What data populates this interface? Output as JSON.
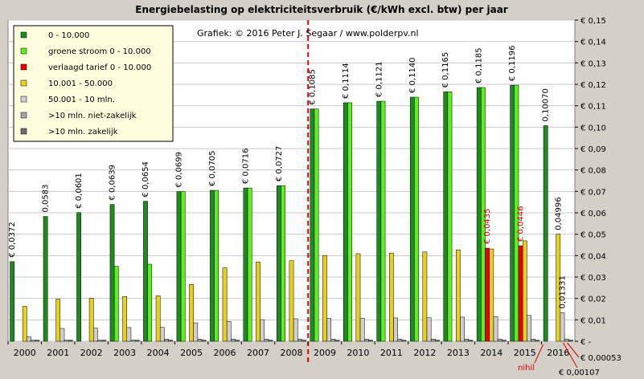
{
  "chart_data": {
    "type": "bar",
    "title": "Energiebelasting  op elektriciteitsverbruik  (€/kWh  excl. btw) per jaar",
    "subtitle": "Grafiek:  © 2016  Peter J. Segaar / www.polderpv.nl",
    "categories": [
      "2000",
      "2001",
      "2002",
      "2003",
      "2004",
      "2005",
      "2006",
      "2007",
      "2008",
      "2009",
      "2010",
      "2011",
      "2012",
      "2013",
      "2014",
      "2015",
      "2016"
    ],
    "ylim": [
      0,
      0.15
    ],
    "yticks": [
      "€ -",
      "€ 0,01",
      "€ 0,02",
      "€ 0,03",
      "€ 0,04",
      "€ 0,05",
      "€ 0,06",
      "€ 0,07",
      "€ 0,08",
      "€ 0,09",
      "€ 0,10",
      "€ 0,11",
      "€ 0,12",
      "€ 0,13",
      "€ 0,14",
      "€ 0,15"
    ],
    "grid": true,
    "legend_position": "top-left",
    "series": [
      {
        "name": "0 - 10.000",
        "color": "#1f8a1f",
        "values": [
          0.0372,
          0.0583,
          0.0601,
          0.0639,
          0.0654,
          0.0699,
          0.0705,
          0.0716,
          0.0727,
          0.1085,
          0.1114,
          0.1121,
          0.114,
          0.1165,
          0.1185,
          0.1196,
          0.1007
        ]
      },
      {
        "name": "groene stroom 0 - 10.000",
        "color": "#5ef01e",
        "values": [
          0,
          0,
          0,
          0.035,
          0.036,
          0.0699,
          0.0705,
          0.0716,
          0.0727,
          0.1085,
          0.1114,
          0.1121,
          0.114,
          0.1165,
          0.1185,
          0.1196,
          null
        ]
      },
      {
        "name": "verlaagd tarief 0 - 10.000",
        "color": "#ee0000",
        "values": [
          null,
          null,
          null,
          null,
          null,
          null,
          null,
          null,
          null,
          null,
          null,
          null,
          null,
          null,
          0.0435,
          0.0446,
          null
        ]
      },
      {
        "name": "10.001 - 50.000",
        "color": "#e8d020",
        "values": [
          0.0163,
          0.0197,
          0.0201,
          0.0209,
          0.0213,
          0.0265,
          0.0343,
          0.037,
          0.0376,
          0.04,
          0.0409,
          0.0412,
          0.0417,
          0.0427,
          0.0431,
          0.0469,
          0.04996
        ]
      },
      {
        "name": "50.001 - 10 mln.",
        "color": "#cfcfcf",
        "values": [
          0.0021,
          0.006,
          0.0061,
          0.0064,
          0.0065,
          0.0086,
          0.0093,
          0.0101,
          0.0105,
          0.0107,
          0.0108,
          0.0109,
          0.011,
          0.0113,
          0.0115,
          0.0121,
          0.01331
        ]
      },
      {
        "name": ">10 mln. niet-zakelijk",
        "color": "#a8a8a8",
        "values": [
          0.0005,
          0.0005,
          0.0005,
          0.0005,
          0.001,
          0.001,
          0.001,
          0.001,
          0.001,
          0.001,
          0.001,
          0.001,
          0.001,
          0.001,
          0.001,
          0.001,
          0.00107
        ]
      },
      {
        "name": ">10 mln. zakelijk",
        "color": "#6e6e6e",
        "values": [
          0.0005,
          0.0005,
          0.0005,
          0.0005,
          0.0005,
          0.0005,
          0.0005,
          0.0005,
          0.0005,
          0.0005,
          0.0005,
          0.0005,
          0.0005,
          0.0005,
          0.0005,
          0.0005,
          0.00053
        ]
      }
    ],
    "data_labels": [
      {
        "category": "2000",
        "series": 0,
        "text": "€ 0,0372",
        "red": false
      },
      {
        "category": "2001",
        "series": 0,
        "text": "0,0583",
        "red": false
      },
      {
        "category": "2002",
        "series": 0,
        "text": "€ 0,0601",
        "red": false
      },
      {
        "category": "2003",
        "series": 0,
        "text": "€ 0,0639",
        "red": false
      },
      {
        "category": "2004",
        "series": 0,
        "text": "€ 0,0654",
        "red": false
      },
      {
        "category": "2005",
        "series": 0,
        "text": "€ 0,0699",
        "red": false
      },
      {
        "category": "2006",
        "series": 0,
        "text": "€ 0,0705",
        "red": false
      },
      {
        "category": "2007",
        "series": 0,
        "text": "€ 0,0716",
        "red": false
      },
      {
        "category": "2008",
        "series": 0,
        "text": "€ 0,0727",
        "red": false
      },
      {
        "category": "2009",
        "series": 0,
        "text": "€ 0,1085",
        "red": false
      },
      {
        "category": "2010",
        "series": 0,
        "text": "€ 0,1114",
        "red": false
      },
      {
        "category": "2011",
        "series": 0,
        "text": "€ 0,1121",
        "red": false
      },
      {
        "category": "2012",
        "series": 0,
        "text": "€ 0,1140",
        "red": false
      },
      {
        "category": "2013",
        "series": 0,
        "text": "€ 0,1165",
        "red": false
      },
      {
        "category": "2014",
        "series": 0,
        "text": "€ 0,1185",
        "red": false
      },
      {
        "category": "2015",
        "series": 0,
        "text": "€ 0,1196",
        "red": false
      },
      {
        "category": "2016",
        "series": 0,
        "text": "0,10070",
        "red": false
      },
      {
        "category": "2014",
        "series": 2,
        "text": "€ 0,0435",
        "red": true
      },
      {
        "category": "2015",
        "series": 2,
        "text": "€ 0,0446",
        "red": true
      },
      {
        "category": "2016",
        "series": 3,
        "text": "0,04996",
        "red": false
      },
      {
        "category": "2016",
        "series": 4,
        "text": "0,01331",
        "red": false
      }
    ],
    "annotations": {
      "nihil": "nihil",
      "low_value_1": "€ 0,00053",
      "low_value_2": "€ 0,00107"
    }
  }
}
